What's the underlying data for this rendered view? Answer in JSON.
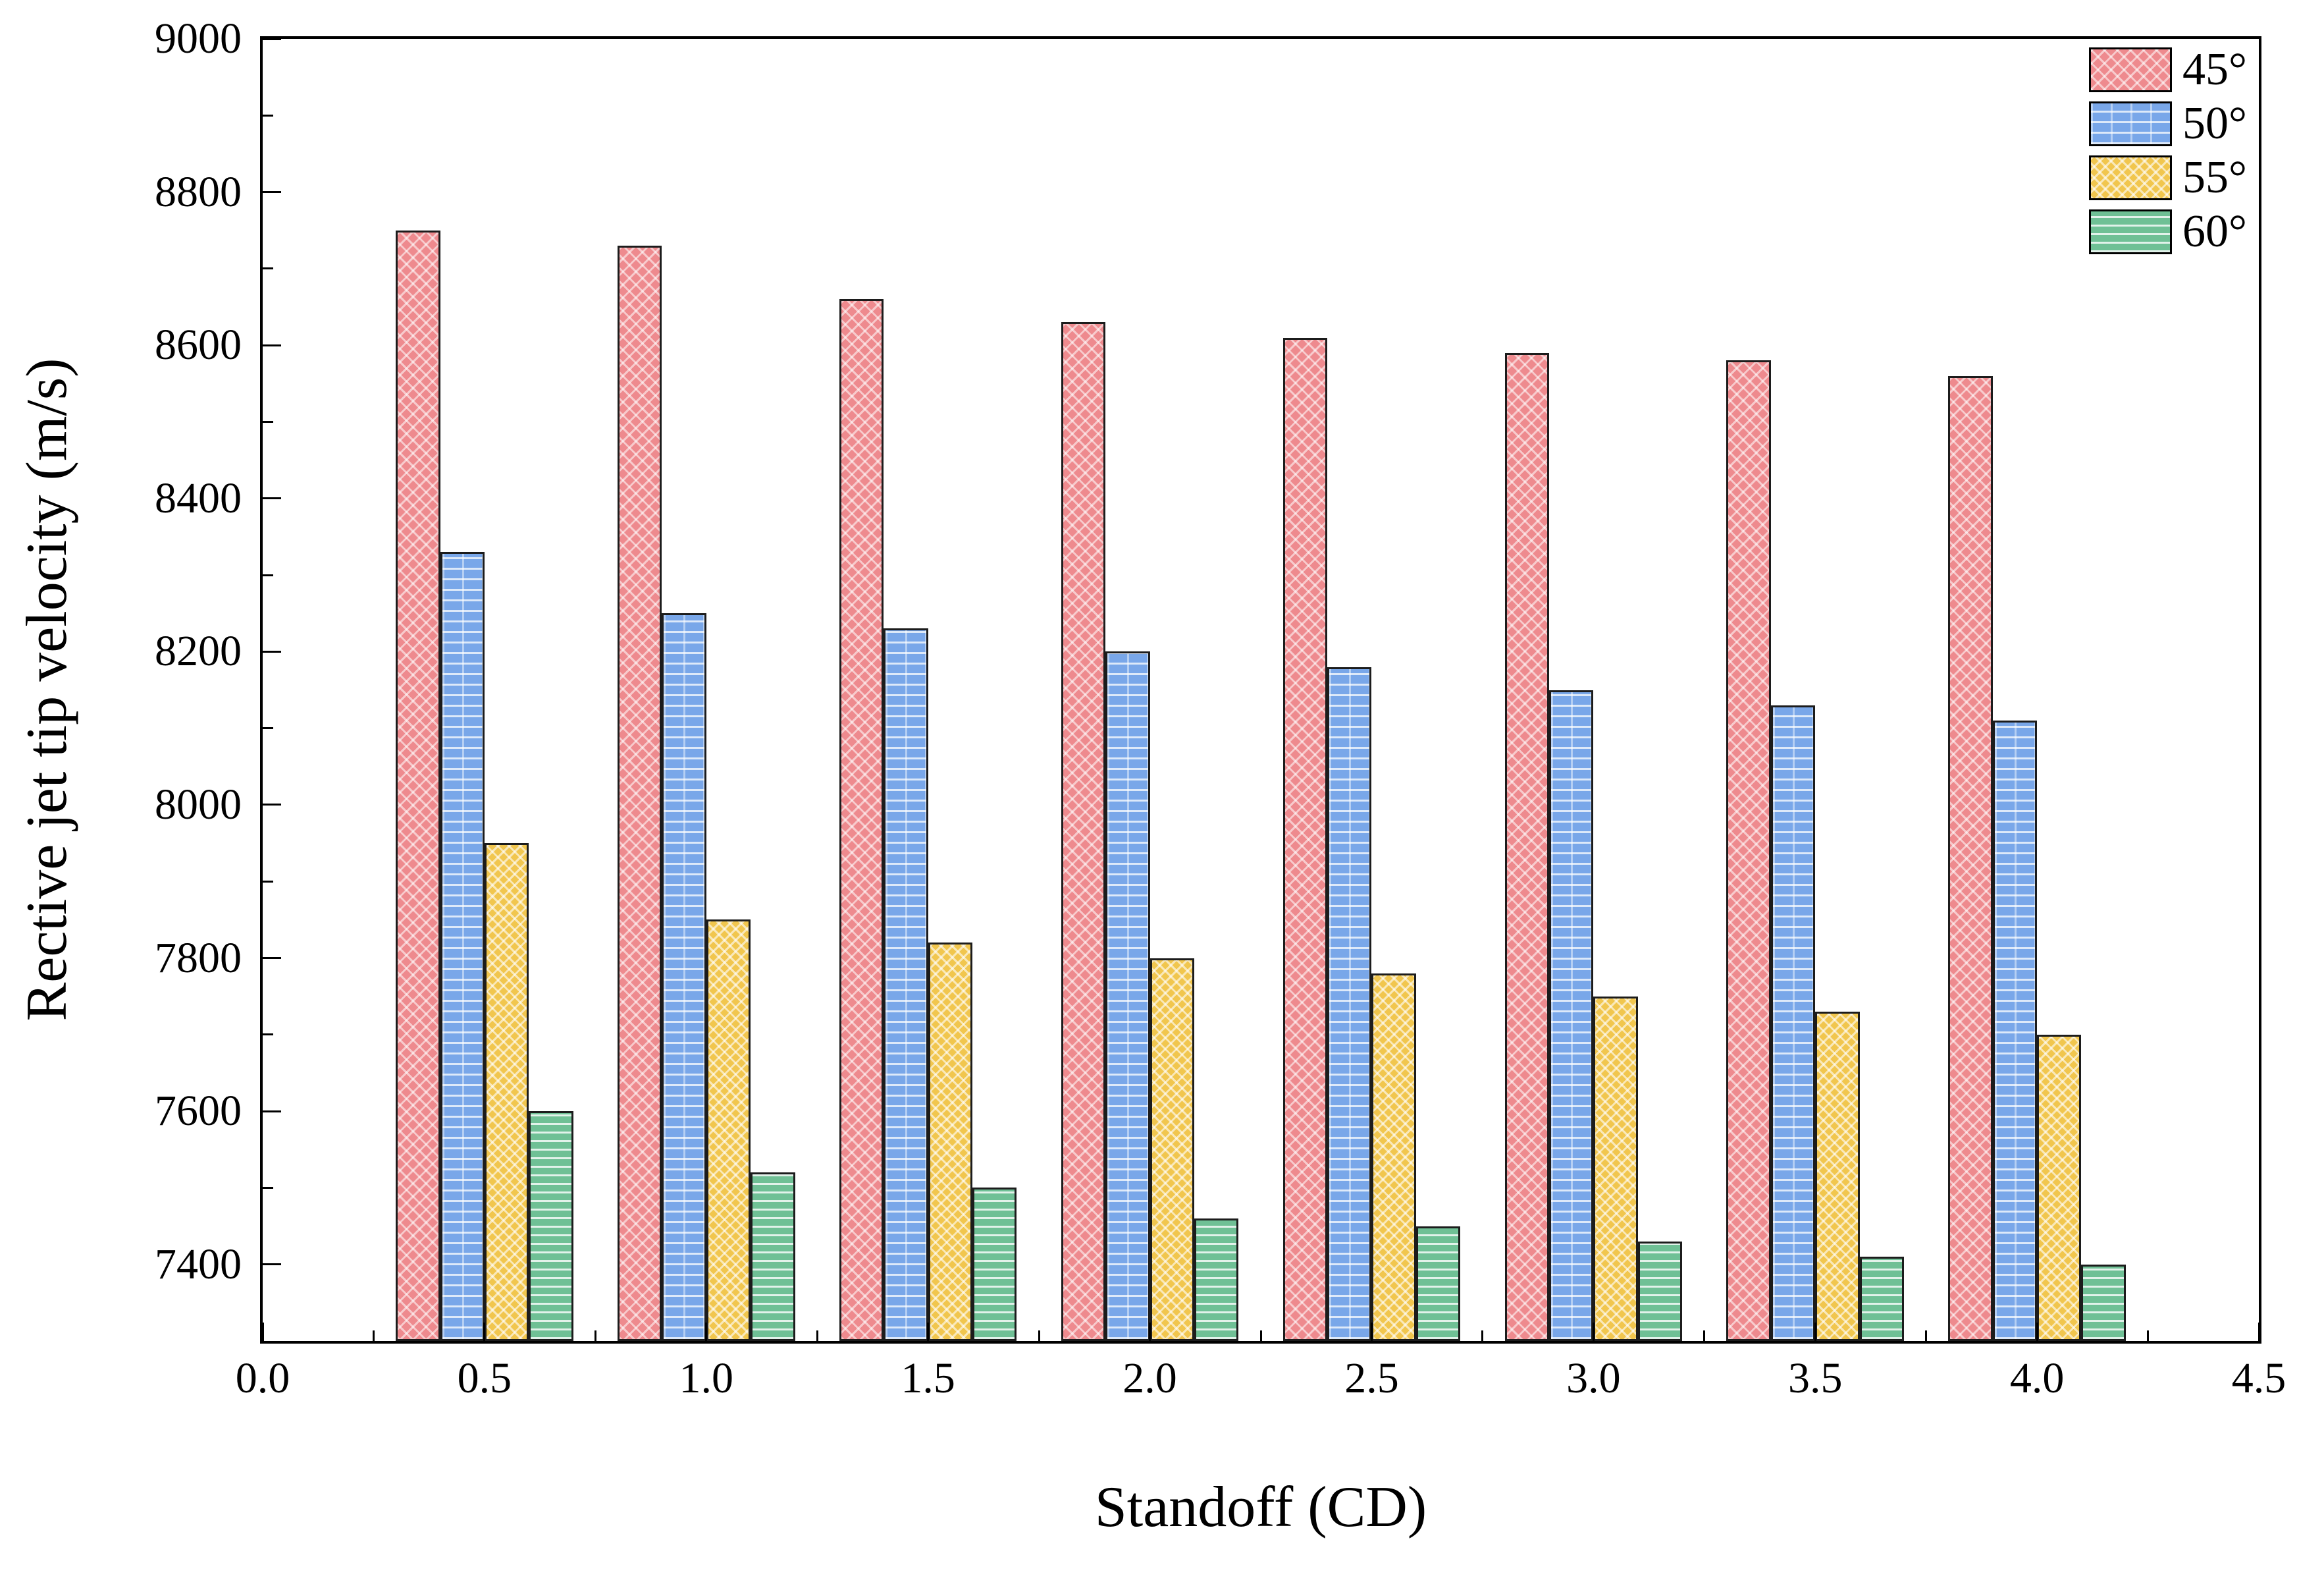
{
  "chart_data": {
    "type": "bar",
    "title": "",
    "xlabel": "Standoff (CD)",
    "ylabel": "Rective jet tip velocity (m/s)",
    "categories": [
      0.5,
      1.0,
      1.5,
      2.0,
      2.5,
      3.0,
      3.5,
      4.0
    ],
    "series": [
      {
        "name": "45°",
        "color": "#ee8a8e",
        "hatch": "diagonal-crosshatch",
        "values": [
          8750,
          8730,
          8660,
          8630,
          8610,
          8590,
          8580,
          8560
        ]
      },
      {
        "name": "50°",
        "color": "#79a7e9",
        "hatch": "brick",
        "values": [
          8330,
          8250,
          8230,
          8200,
          8180,
          8150,
          8130,
          8110
        ]
      },
      {
        "name": "55°",
        "color": "#f1c64e",
        "hatch": "diagonal-crosshatch",
        "values": [
          7950,
          7850,
          7820,
          7800,
          7780,
          7750,
          7730,
          7700
        ]
      },
      {
        "name": "60°",
        "color": "#6fc095",
        "hatch": "horizontal-lines",
        "values": [
          7600,
          7520,
          7500,
          7460,
          7450,
          7430,
          7410,
          7400
        ]
      }
    ],
    "xlim": [
      0,
      4.5
    ],
    "ylim": [
      7300,
      9000
    ],
    "x_ticks": [
      "0.0",
      "0.5",
      "1.0",
      "1.5",
      "2.0",
      "2.5",
      "3.0",
      "3.5",
      "4.0",
      "4.5"
    ],
    "y_ticks": [
      7400,
      7600,
      7800,
      8000,
      8200,
      8400,
      8600,
      8800,
      9000
    ],
    "x_minor_step": 0.25,
    "y_minor_step": 100,
    "bar_width_units": 0.1,
    "grid": false,
    "legend_position": "top-right",
    "axis_color": "#000000",
    "background_color": "#ffffff"
  }
}
